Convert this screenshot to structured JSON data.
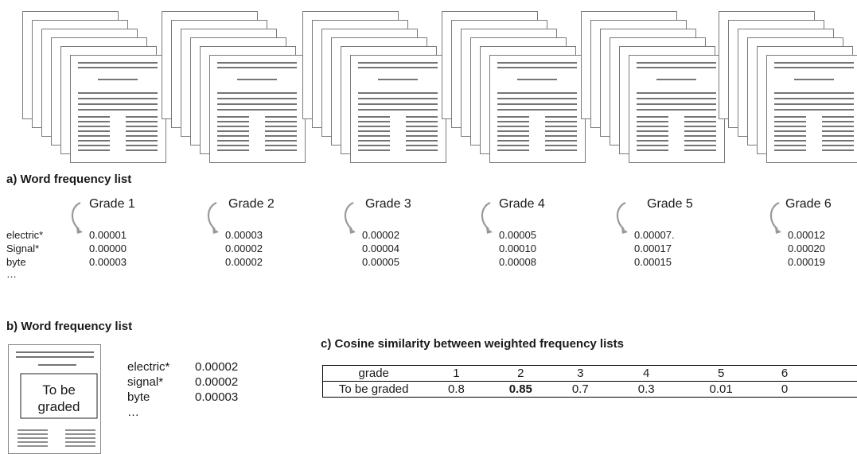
{
  "section_a": {
    "heading": "a) Word frequency list",
    "grades": [
      {
        "label": "Grade 1",
        "values": [
          "0.00001",
          "0.00000",
          "0.00003"
        ]
      },
      {
        "label": "Grade 2",
        "values": [
          "0.00003",
          "0.00002",
          "0.00002"
        ]
      },
      {
        "label": "Grade 3",
        "values": [
          "0.00002",
          "0.00004",
          "0.00005"
        ]
      },
      {
        "label": "Grade 4",
        "values": [
          "0.00005",
          "0.00010",
          "0.00008"
        ]
      },
      {
        "label": "Grade 5",
        "values": [
          "0.00007.",
          "0.00017",
          "0.00015"
        ]
      },
      {
        "label": "Grade 6",
        "values": [
          "0.00012",
          "0.00020",
          "0.00019"
        ]
      }
    ],
    "terms": [
      "electric*",
      "Signal*",
      "byte",
      "…"
    ]
  },
  "section_b": {
    "heading": "b) Word frequency list",
    "doc_label_line1": "To be",
    "doc_label_line2": "graded",
    "terms": [
      "electric*",
      "signal*",
      "byte",
      "…"
    ],
    "values": [
      "0.00002",
      "0.00002",
      "0.00003"
    ]
  },
  "section_c": {
    "heading": "c) Cosine similarity between weighted frequency lists",
    "header_row": [
      "grade",
      "1",
      "2",
      "3",
      "4",
      "5",
      "6"
    ],
    "data_row": [
      "To be graded",
      "0.8",
      "0.85",
      "0.7",
      "0.3",
      "0.01",
      "0"
    ]
  }
}
